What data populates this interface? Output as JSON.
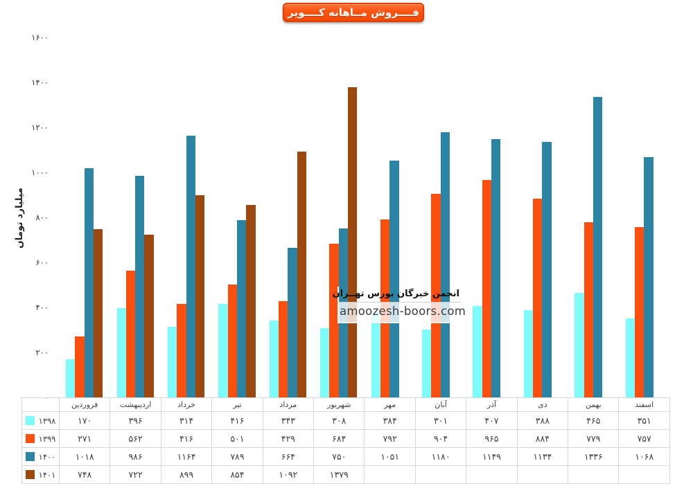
{
  "title": {
    "text": "فــــروش مــاهانه کــــویر"
  },
  "watermark": {
    "line1": "انجمن خبرگان بورس تهــران",
    "line2": "amoozesh-boors.com"
  },
  "chart_data": {
    "type": "bar",
    "title": "فــــروش مــاهانه کــــویر",
    "xlabel": "",
    "ylabel": "میلیارد تومان",
    "ylim": [
      0,
      1600
    ],
    "grid": false,
    "legend_position": "table-left-column",
    "y_ticks": [
      {
        "value": 1600,
        "label": "۱۶۰۰"
      },
      {
        "value": 1400,
        "label": "۱۴۰۰"
      },
      {
        "value": 1200,
        "label": "۱۲۰۰"
      },
      {
        "value": 1000,
        "label": "۱۰۰۰"
      },
      {
        "value": 800,
        "label": "۸۰۰"
      },
      {
        "value": 600,
        "label": "۶۰۰"
      },
      {
        "value": 400,
        "label": "۴۰۰"
      },
      {
        "value": 200,
        "label": "۲۰۰"
      },
      {
        "value": 0,
        "label": "۰"
      }
    ],
    "categories": [
      "فروردین",
      "اردیبهشت",
      "خرداد",
      "تیر",
      "مرداد",
      "شهریور",
      "مهر",
      "آبان",
      "آذر",
      "دی",
      "بهمن",
      "اسفند"
    ],
    "series": [
      {
        "name": "۱۳۹۸",
        "color": "#7efcfb",
        "values": [
          170,
          396,
          314,
          416,
          343,
          308,
          384,
          301,
          407,
          388,
          465,
          351
        ],
        "display": [
          "۱۷۰",
          "۳۹۶",
          "۳۱۴",
          "۴۱۶",
          "۳۴۳",
          "۳۰۸",
          "۳۸۴",
          "۳۰۱",
          "۴۰۷",
          "۳۸۸",
          "۴۶۵",
          "۳۵۱"
        ]
      },
      {
        "name": "۱۳۹۹",
        "color": "#fb4f0f",
        "values": [
          271,
          562,
          416,
          501,
          429,
          684,
          792,
          904,
          965,
          884,
          779,
          757
        ],
        "display": [
          "۲۷۱",
          "۵۶۲",
          "۴۱۶",
          "۵۰۱",
          "۴۲۹",
          "۶۸۴",
          "۷۹۲",
          "۹۰۴",
          "۹۶۵",
          "۸۸۴",
          "۷۷۹",
          "۷۵۷"
        ]
      },
      {
        "name": "۱۴۰۰",
        "color": "#2b84a3",
        "values": [
          1018,
          986,
          1164,
          789,
          664,
          750,
          1051,
          1180,
          1149,
          1134,
          1336,
          1068
        ],
        "display": [
          "۱۰۱۸",
          "۹۸۶",
          "۱۱۶۴",
          "۷۸۹",
          "۶۶۴",
          "۷۵۰",
          "۱۰۵۱",
          "۱۱۸۰",
          "۱۱۴۹",
          "۱۱۳۴",
          "۱۳۳۶",
          "۱۰۶۸"
        ]
      },
      {
        "name": "۱۴۰۱",
        "color": "#9c470d",
        "values": [
          748,
          722,
          899,
          854,
          1092,
          1379,
          null,
          null,
          null,
          null,
          null,
          null
        ],
        "display": [
          "۷۴۸",
          "۷۲۲",
          "۸۹۹",
          "۸۵۴",
          "۱۰۹۲",
          "۱۳۷۹",
          "",
          "",
          "",
          "",
          "",
          ""
        ]
      }
    ]
  },
  "colors": {
    "badge": "#fb5310",
    "badge_border": "#dd3f00",
    "table_border": "#d8d8d8",
    "text": "#3f3f3f"
  }
}
